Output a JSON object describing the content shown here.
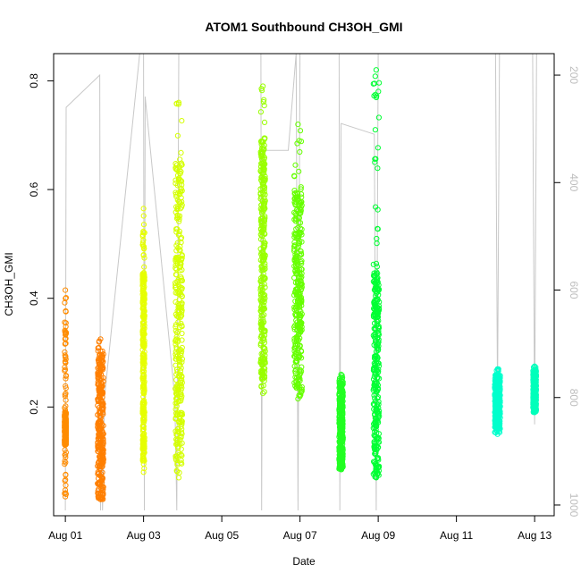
{
  "chart_data": {
    "type": "scatter",
    "title": "ATOM1 Southbound CH3OH_GMI",
    "xlabel": "Date",
    "ylabel": "CH3OH_GMI",
    "x_ticks": [
      "Aug 01",
      "Aug 03",
      "Aug 05",
      "Aug 07",
      "Aug 09",
      "Aug 11",
      "Aug 13"
    ],
    "xlim_days": [
      0.7,
      13.5
    ],
    "ylim": [
      0.0,
      0.85
    ],
    "y_ticks": [
      0.2,
      0.4,
      0.6,
      0.8
    ],
    "y2_ticks": [
      200,
      400,
      600,
      800,
      1000
    ],
    "y2lim": [
      1020,
      160
    ],
    "y2_reversed": true,
    "grid": false,
    "point_style": "open circle",
    "line_color": "#c8c8c8",
    "clusters": [
      {
        "center": 1.0,
        "width": 0.04,
        "ymin": 0.035,
        "ymax": 0.415,
        "dense": [
          0.13,
          0.19
        ],
        "color": "#ff8c00"
      },
      {
        "center": 1.9,
        "width": 0.15,
        "ymin": 0.03,
        "ymax": 0.325,
        "dense": [
          0.03,
          0.3
        ],
        "color": "#ff7f00"
      },
      {
        "center": 3.0,
        "width": 0.05,
        "ymin": 0.08,
        "ymax": 0.565,
        "dense": [
          0.1,
          0.45
        ],
        "color": "#e6ff00"
      },
      {
        "center": 3.9,
        "width": 0.18,
        "ymin": 0.07,
        "ymax": 0.76,
        "dense": [
          0.08,
          0.65
        ],
        "color": "#d4ff00"
      },
      {
        "center": 6.05,
        "width": 0.12,
        "ymin": 0.225,
        "ymax": 0.79,
        "dense": [
          0.25,
          0.7
        ],
        "color": "#99ff00"
      },
      {
        "center": 6.95,
        "width": 0.2,
        "ymin": 0.215,
        "ymax": 0.72,
        "dense": [
          0.22,
          0.6
        ],
        "color": "#66ff00"
      },
      {
        "center": 8.05,
        "width": 0.1,
        "ymin": 0.085,
        "ymax": 0.26,
        "dense": [
          0.085,
          0.25
        ],
        "color": "#22ff22"
      },
      {
        "center": 8.95,
        "width": 0.15,
        "ymin": 0.07,
        "ymax": 0.82,
        "dense": [
          0.07,
          0.45
        ],
        "color": "#00ff33"
      },
      {
        "center": 12.05,
        "width": 0.14,
        "ymin": 0.15,
        "ymax": 0.27,
        "dense": [
          0.16,
          0.26
        ],
        "color": "#00ffcc"
      },
      {
        "center": 13.0,
        "width": 0.08,
        "ymin": 0.19,
        "ymax": 0.275,
        "dense": [
          0.19,
          0.27
        ],
        "color": "#00ffbb"
      }
    ],
    "altitude_trace": [
      [
        1.0,
        1010
      ],
      [
        1.02,
        260
      ],
      [
        1.88,
        200
      ],
      [
        1.9,
        1010
      ],
      [
        1.92,
        820
      ],
      [
        1.95,
        1010
      ],
      [
        2.0,
        800
      ],
      [
        2.9,
        160
      ],
      [
        3.0,
        160
      ],
      [
        3.02,
        1010
      ],
      [
        3.04,
        240
      ],
      [
        3.8,
        800
      ],
      [
        3.85,
        1010
      ],
      [
        3.9,
        160
      ],
      [
        4.2,
        160
      ],
      [
        4.4,
        160
      ],
      [
        4.8,
        160
      ],
      [
        6.0,
        160
      ],
      [
        6.02,
        1010
      ],
      [
        6.05,
        340
      ],
      [
        6.7,
        340
      ],
      [
        6.9,
        160
      ],
      [
        6.95,
        1010
      ],
      [
        7.0,
        160
      ],
      [
        8.0,
        160
      ],
      [
        8.02,
        1010
      ],
      [
        8.05,
        290
      ],
      [
        8.9,
        310
      ],
      [
        8.95,
        1010
      ],
      [
        9.0,
        160
      ],
      [
        12.0,
        160
      ],
      [
        12.05,
        800
      ],
      [
        12.1,
        160
      ],
      [
        12.95,
        160
      ],
      [
        13.0,
        850
      ],
      [
        13.05,
        160
      ]
    ]
  }
}
